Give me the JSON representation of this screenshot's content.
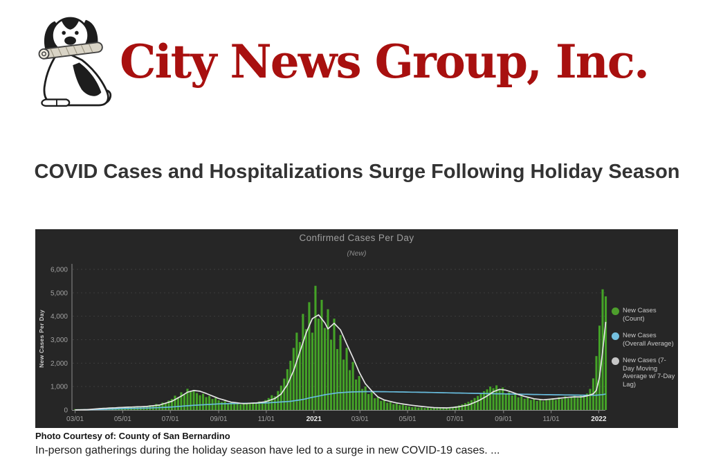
{
  "logo": {
    "text": "City News Group, Inc.",
    "color": "#a8100f",
    "icon": "dog-with-newspaper"
  },
  "page": {
    "headline": "COVID Cases and Hospitalizations Surge Following Holiday Season",
    "photo_credit": "Photo Courtesy of: County of San Bernardino",
    "body_text": "In-person gatherings during the holiday season have led to a surge in new COVID-19 cases. ..."
  },
  "chart_data": {
    "type": "bar",
    "title": "Confirmed Cases Per Day",
    "subtitle": "(New)",
    "ylabel": "New Cases Per Day",
    "xlabel": "",
    "ylim": [
      0,
      6000
    ],
    "x_range": [
      "03/01 (2020)",
      "2022"
    ],
    "background": "#262626",
    "grid": "dashed-horizontal",
    "legend_position": "right",
    "yticks": [
      {
        "v": 0,
        "label": "0"
      },
      {
        "v": 1000,
        "label": "1,000"
      },
      {
        "v": 2000,
        "label": "2,000"
      },
      {
        "v": 3000,
        "label": "3,000"
      },
      {
        "v": 4000,
        "label": "4,000"
      },
      {
        "v": 5000,
        "label": "5,000"
      },
      {
        "v": 6000,
        "label": "6,000"
      }
    ],
    "xticks": [
      {
        "label": "03/01",
        "i": 0,
        "bold": false
      },
      {
        "label": "05/01",
        "i": 15.25,
        "bold": false
      },
      {
        "label": "07/01",
        "i": 30.5,
        "bold": false
      },
      {
        "label": "09/01",
        "i": 46,
        "bold": false
      },
      {
        "label": "11/01",
        "i": 61.25,
        "bold": false
      },
      {
        "label": "2021",
        "i": 76.5,
        "bold": true
      },
      {
        "label": "03/01",
        "i": 91.25,
        "bold": false
      },
      {
        "label": "05/01",
        "i": 106.5,
        "bold": false
      },
      {
        "label": "07/01",
        "i": 121.75,
        "bold": false
      },
      {
        "label": "09/01",
        "i": 137.25,
        "bold": false
      },
      {
        "label": "11/01",
        "i": 152.5,
        "bold": false
      },
      {
        "label": "2022",
        "i": 167.75,
        "bold": true
      }
    ],
    "series": [
      {
        "name": "New Cases (Count)",
        "type": "bar",
        "color": "#44a227",
        "sampling": "one value per 4 days, Mar 2020 through early Jan 2022",
        "values": [
          4,
          9,
          14,
          20,
          28,
          40,
          55,
          68,
          80,
          95,
          85,
          112,
          96,
          118,
          105,
          124,
          112,
          135,
          118,
          145,
          126,
          155,
          138,
          165,
          205,
          185,
          255,
          235,
          315,
          295,
          405,
          470,
          610,
          545,
          755,
          665,
          905,
          780,
          855,
          720,
          630,
          690,
          550,
          600,
          470,
          515,
          415,
          345,
          375,
          285,
          315,
          250,
          275,
          235,
          260,
          295,
          265,
          325,
          290,
          365,
          335,
          425,
          510,
          630,
          580,
          810,
          1040,
          1340,
          1740,
          2100,
          2650,
          3300,
          2900,
          4100,
          3450,
          4600,
          3300,
          5300,
          3900,
          4700,
          3500,
          4300,
          3000,
          3900,
          2600,
          3200,
          2150,
          2650,
          1700,
          2050,
          1300,
          1450,
          900,
          1000,
          680,
          750,
          500,
          540,
          390,
          420,
          310,
          330,
          250,
          270,
          210,
          225,
          180,
          150,
          120,
          130,
          100,
          110,
          85,
          95,
          80,
          95,
          75,
          90,
          82,
          95,
          105,
          130,
          160,
          195,
          240,
          290,
          350,
          420,
          510,
          600,
          700,
          800,
          880,
          1000,
          930,
          1050,
          890,
          960,
          700,
          760,
          620,
          660,
          540,
          580,
          480,
          520,
          430,
          470,
          390,
          430,
          380,
          420,
          460,
          500,
          430,
          540,
          470,
          580,
          500,
          560,
          600,
          520,
          640,
          580,
          700,
          900,
          1350,
          2300,
          3600,
          5150,
          4850
        ]
      },
      {
        "name": "New Cases (Overall Average)",
        "type": "line",
        "color": "#68bcdd",
        "anchors": [
          [
            0,
            5
          ],
          [
            8,
            25
          ],
          [
            15,
            55
          ],
          [
            23,
            80
          ],
          [
            30,
            120
          ],
          [
            38,
            200
          ],
          [
            46,
            260
          ],
          [
            54,
            285
          ],
          [
            61,
            300
          ],
          [
            69,
            370
          ],
          [
            73,
            450
          ],
          [
            76,
            540
          ],
          [
            80,
            650
          ],
          [
            84,
            730
          ],
          [
            88,
            765
          ],
          [
            91,
            780
          ],
          [
            95,
            785
          ],
          [
            99,
            780
          ],
          [
            106,
            765
          ],
          [
            114,
            748
          ],
          [
            121,
            728
          ],
          [
            129,
            708
          ],
          [
            137,
            688
          ],
          [
            145,
            668
          ],
          [
            152,
            652
          ],
          [
            160,
            636
          ],
          [
            165,
            628
          ],
          [
            167,
            632
          ],
          [
            169,
            655
          ],
          [
            170,
            680
          ]
        ]
      },
      {
        "name": "New Cases (7-Day Moving Average w/ 7-Day Lag)",
        "type": "line",
        "color": "#e6e6e6",
        "anchors": [
          [
            0,
            4
          ],
          [
            4,
            15
          ],
          [
            8,
            60
          ],
          [
            15,
            110
          ],
          [
            23,
            150
          ],
          [
            27,
            210
          ],
          [
            31,
            370
          ],
          [
            34,
            590
          ],
          [
            36,
            760
          ],
          [
            38,
            830
          ],
          [
            40,
            800
          ],
          [
            42,
            705
          ],
          [
            46,
            490
          ],
          [
            50,
            335
          ],
          [
            54,
            272
          ],
          [
            58,
            300
          ],
          [
            61,
            350
          ],
          [
            64,
            490
          ],
          [
            66,
            680
          ],
          [
            68,
            1080
          ],
          [
            70,
            1680
          ],
          [
            72,
            2480
          ],
          [
            74,
            3280
          ],
          [
            76,
            3900
          ],
          [
            78,
            4060
          ],
          [
            80,
            3720
          ],
          [
            81,
            3460
          ],
          [
            83,
            3700
          ],
          [
            85,
            3420
          ],
          [
            87,
            2820
          ],
          [
            89,
            2240
          ],
          [
            91,
            1620
          ],
          [
            93,
            1120
          ],
          [
            95,
            820
          ],
          [
            97,
            560
          ],
          [
            99,
            430
          ],
          [
            103,
            300
          ],
          [
            107,
            215
          ],
          [
            111,
            150
          ],
          [
            115,
            100
          ],
          [
            119,
            90
          ],
          [
            121,
            105
          ],
          [
            123,
            140
          ],
          [
            126,
            215
          ],
          [
            129,
            380
          ],
          [
            132,
            600
          ],
          [
            134,
            780
          ],
          [
            136,
            880
          ],
          [
            138,
            845
          ],
          [
            140,
            760
          ],
          [
            142,
            660
          ],
          [
            144,
            580
          ],
          [
            147,
            480
          ],
          [
            150,
            435
          ],
          [
            153,
            470
          ],
          [
            156,
            515
          ],
          [
            158,
            540
          ],
          [
            160,
            560
          ],
          [
            162,
            555
          ],
          [
            164,
            600
          ],
          [
            166,
            690
          ],
          [
            167,
            840
          ],
          [
            168,
            1400
          ],
          [
            169,
            2500
          ],
          [
            170,
            3760
          ]
        ]
      }
    ],
    "legend": [
      {
        "label": "New Cases (Count)",
        "color": "#4d9e2c"
      },
      {
        "label": "New Cases (Overall Average)",
        "color": "#74c0df"
      },
      {
        "label": "New Cases (7-Day Moving Average w/ 7-Day Lag)",
        "color": "#c6c6c6"
      }
    ]
  }
}
